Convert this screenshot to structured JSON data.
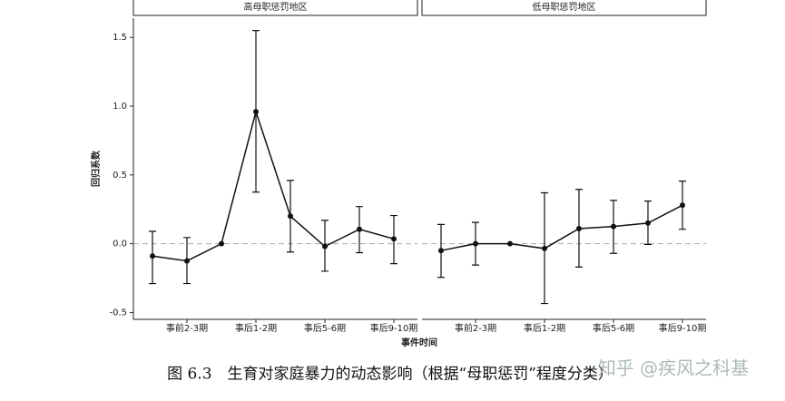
{
  "chart_data": {
    "type": "line",
    "y_label": "回归系数",
    "x_label": "事件时间",
    "ylim": [
      -0.55,
      1.64
    ],
    "yticks": [
      -0.5,
      {
        "value": 0,
        "label": "0.0"
      },
      0.5,
      {
        "value": 1,
        "label": "1.0"
      },
      1.5
    ],
    "reference_line": 0,
    "color": "#111111",
    "panels": [
      {
        "title": "高母职惩罚地区",
        "categories": [
          null,
          "事前2-3期",
          null,
          "事后1-2期",
          null,
          "事后5-6期",
          null,
          "事后9-10期"
        ],
        "values": [
          -0.09,
          -0.125,
          0,
          0.96,
          0.2,
          -0.02,
          0.105,
          0.035
        ],
        "lower": [
          -0.29,
          -0.29,
          null,
          0.375,
          -0.06,
          -0.2,
          -0.065,
          -0.145
        ],
        "upper": [
          0.09,
          0.045,
          null,
          1.55,
          0.46,
          0.17,
          0.27,
          0.205
        ]
      },
      {
        "title": "低母职惩罚地区",
        "categories": [
          null,
          "事前2-3期",
          null,
          "事后1-2期",
          null,
          "事后5-6期",
          null,
          "事后9-10期"
        ],
        "values": [
          -0.05,
          0,
          0,
          -0.035,
          0.11,
          0.125,
          0.15,
          0.28
        ],
        "lower": [
          -0.245,
          -0.155,
          null,
          -0.435,
          -0.17,
          -0.07,
          -0.005,
          0.105
        ],
        "upper": [
          0.14,
          0.155,
          null,
          0.37,
          0.395,
          0.315,
          0.31,
          0.455
        ]
      }
    ]
  },
  "caption": "图 6.3　生育对家庭暴力的动态影响（根据“母职惩罚”程度分类）",
  "watermark": "知乎 @疾风之科基"
}
